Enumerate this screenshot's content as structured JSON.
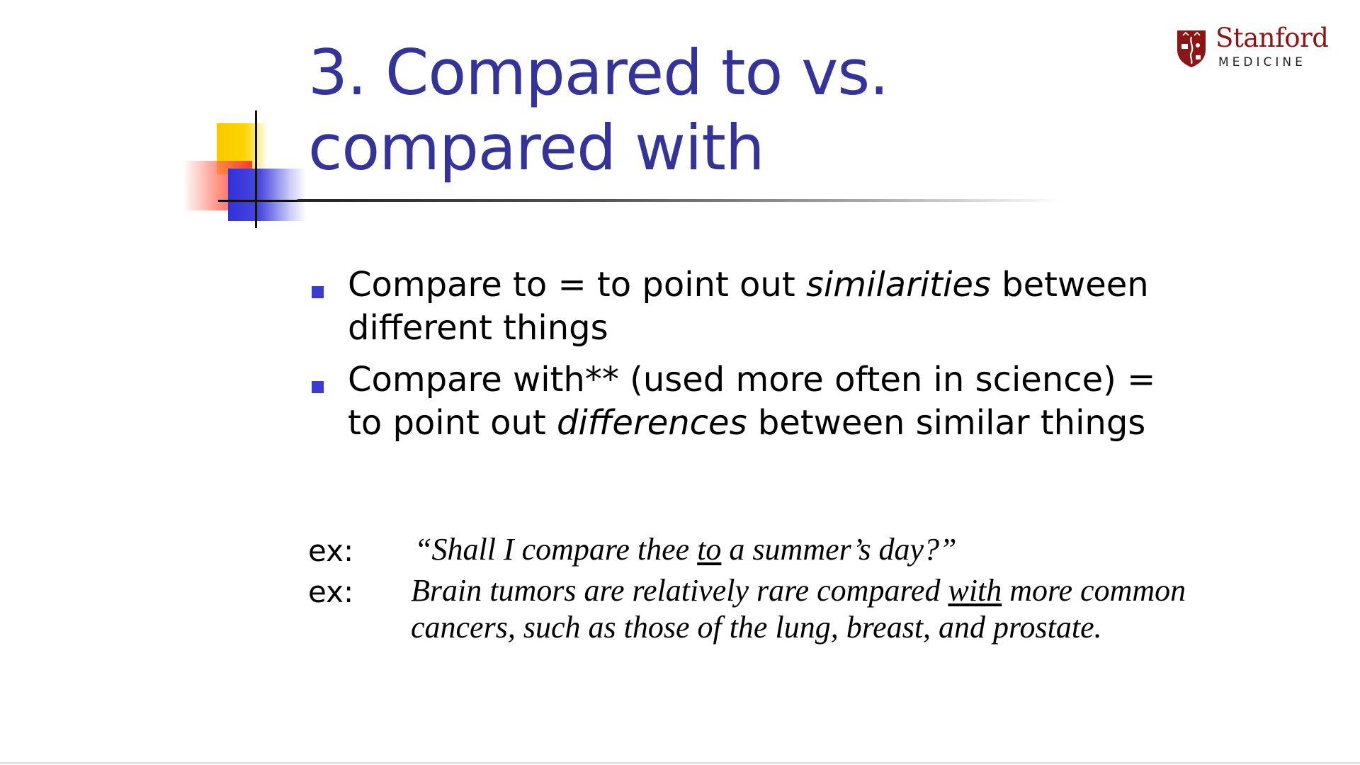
{
  "slide": {
    "title": "3. Compared to vs. compared with",
    "logo": {
      "name": "Stanford",
      "subtitle": "MEDICINE",
      "icon": "stanford-shield-icon",
      "color": "#8c1515"
    },
    "bullets": [
      {
        "before": "Compare to = to point out ",
        "emphasis": "similarities",
        "after": " between different things"
      },
      {
        "before": "Compare with** (used more often in science) = to point out ",
        "emphasis": "differences",
        "after": " between similar things"
      }
    ],
    "examples": [
      {
        "label": "ex:",
        "before": "“Shall I compare thee ",
        "underlined": "to",
        "after": " a summer’s day?”"
      },
      {
        "label": "ex:",
        "before": "Brain tumors are relatively rare compared ",
        "underlined": "with",
        "after": " more common cancers, such as those of the lung, breast, and prostate."
      }
    ],
    "colors": {
      "title": "#33339a",
      "bullet_marker": "#3b3bd0",
      "deco_yellow": "#ffd400",
      "deco_red": "#ff3a2a",
      "deco_blue": "#3232d8"
    }
  }
}
